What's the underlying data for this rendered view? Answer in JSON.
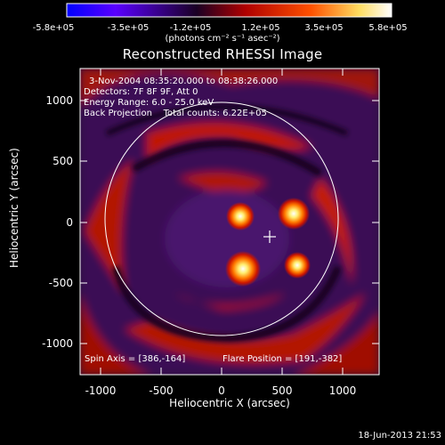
{
  "colorbar": {
    "ticks": [
      "-5.8e+05",
      "-3.5e+05",
      "-1.2e+05",
      "1.2e+05",
      "3.5e+05",
      "5.8e+05"
    ],
    "units": "(photons cm⁻² s⁻¹ asec⁻²)",
    "colors": [
      "#0000ff",
      "#5a00ff",
      "#1a0024",
      "#b00000",
      "#ff5000",
      "#ffdd60",
      "#ffffff"
    ]
  },
  "title": "Reconstructed RHESSI Image",
  "info": {
    "time_range": "3-Nov-2004 08:35:20.000 to 08:38:26.000",
    "detectors": "Detectors: 7F 8F 9F, Att 0",
    "energy_range": "Energy Range: 6.0 - 25.0 keV",
    "method_counts": "Back Projection    Total counts: 6.22E+05"
  },
  "annotations": {
    "spin_axis": "Spin Axis = [386,-164]",
    "flare_position": "Flare Position = [191,-382]"
  },
  "axes": {
    "xlabel": "Heliocentric X (arcsec)",
    "ylabel": "Heliocentric Y (arcsec)",
    "xticks": [
      "-1000",
      "-500",
      "0",
      "500",
      "1000"
    ],
    "yticks": [
      "1000",
      "500",
      "0",
      "-500",
      "-1000"
    ]
  },
  "timestamp": "18-Jun-2013 21:53"
}
